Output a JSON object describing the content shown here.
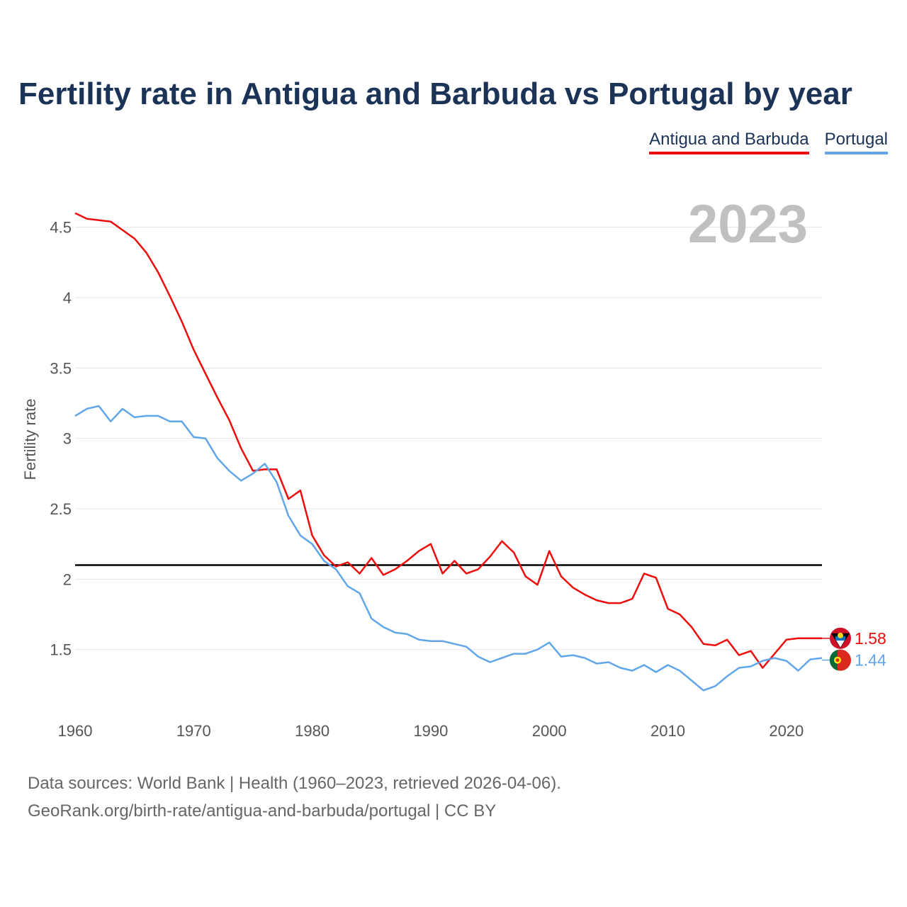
{
  "chart_data": {
    "type": "line",
    "title": "Fertility rate in Antigua and Barbuda vs Portugal by year",
    "ylabel": "Fertility rate",
    "xlabel": "",
    "xlim": [
      1960,
      2023
    ],
    "ylim": [
      1.0,
      4.75
    ],
    "x_ticks": [
      1960,
      1970,
      1980,
      1990,
      2000,
      2010,
      2020
    ],
    "y_ticks": [
      1.5,
      2,
      2.5,
      3,
      3.5,
      4,
      4.5
    ],
    "y_tick_labels": [
      "1.5",
      "2",
      "2.5",
      "3",
      "3.5",
      "4",
      "4.5"
    ],
    "reference_line": 2.1,
    "year_label": "2023",
    "legend_position": "top-right",
    "x": [
      1960,
      1961,
      1962,
      1963,
      1964,
      1965,
      1966,
      1967,
      1968,
      1969,
      1970,
      1971,
      1972,
      1973,
      1974,
      1975,
      1976,
      1977,
      1978,
      1979,
      1980,
      1981,
      1982,
      1983,
      1984,
      1985,
      1986,
      1987,
      1988,
      1989,
      1990,
      1991,
      1992,
      1993,
      1994,
      1995,
      1996,
      1997,
      1998,
      1999,
      2000,
      2001,
      2002,
      2003,
      2004,
      2005,
      2006,
      2007,
      2008,
      2009,
      2010,
      2011,
      2012,
      2013,
      2014,
      2015,
      2016,
      2017,
      2018,
      2019,
      2020,
      2021,
      2022,
      2023
    ],
    "series": [
      {
        "name": "Antigua and Barbuda",
        "color": "#ee0c0c",
        "end_label": "1.58",
        "values": [
          4.6,
          4.56,
          4.55,
          4.54,
          4.48,
          4.42,
          4.32,
          4.18,
          4.01,
          3.83,
          3.63,
          3.46,
          3.29,
          3.13,
          2.93,
          2.77,
          2.78,
          2.78,
          2.57,
          2.63,
          2.31,
          2.17,
          2.09,
          2.12,
          2.04,
          2.15,
          2.03,
          2.07,
          2.13,
          2.2,
          2.25,
          2.04,
          2.13,
          2.04,
          2.07,
          2.16,
          2.27,
          2.19,
          2.02,
          1.96,
          2.2,
          2.02,
          1.94,
          1.89,
          1.85,
          1.83,
          1.83,
          1.86,
          2.04,
          2.01,
          1.79,
          1.75,
          1.66,
          1.54,
          1.53,
          1.57,
          1.46,
          1.49,
          1.37,
          1.47,
          1.57,
          1.58,
          1.58,
          1.58
        ]
      },
      {
        "name": "Portugal",
        "color": "#61a6e8",
        "end_label": "1.44",
        "values": [
          3.16,
          3.21,
          3.23,
          3.12,
          3.21,
          3.15,
          3.16,
          3.16,
          3.12,
          3.12,
          3.01,
          3.0,
          2.86,
          2.77,
          2.7,
          2.75,
          2.82,
          2.69,
          2.45,
          2.31,
          2.25,
          2.13,
          2.07,
          1.95,
          1.9,
          1.72,
          1.66,
          1.62,
          1.61,
          1.57,
          1.56,
          1.56,
          1.54,
          1.52,
          1.45,
          1.41,
          1.44,
          1.47,
          1.47,
          1.5,
          1.55,
          1.45,
          1.46,
          1.44,
          1.4,
          1.41,
          1.37,
          1.35,
          1.39,
          1.34,
          1.39,
          1.35,
          1.28,
          1.21,
          1.24,
          1.31,
          1.37,
          1.38,
          1.42,
          1.44,
          1.42,
          1.35,
          1.43,
          1.44
        ]
      }
    ]
  },
  "footer": {
    "line1": "Data sources: World Bank | Health (1960–2023, retrieved 2026-04-06).",
    "line2": "GeoRank.org/birth-rate/antigua-and-barbuda/portugal | CC BY"
  }
}
